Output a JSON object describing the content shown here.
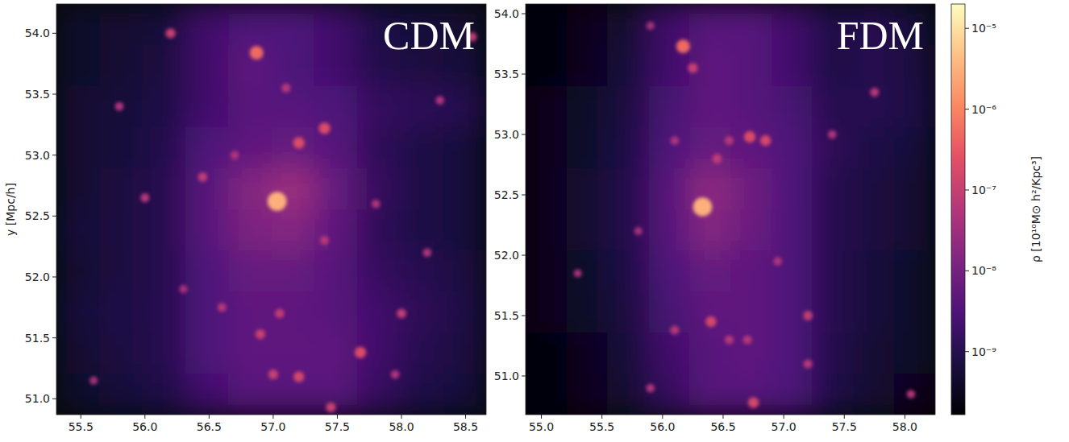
{
  "chart_data": [
    {
      "type": "heatmap",
      "title": "CDM",
      "ylabel": "y [Mpc/h]",
      "xlim": [
        55.31,
        58.66
      ],
      "xticks": [
        55.5,
        {
          "value": 56,
          "label": "56.0"
        },
        56.5,
        {
          "value": 57,
          "label": "57.0"
        },
        57.5,
        {
          "value": 58,
          "label": "58.0"
        },
        58.5
      ],
      "ylim": [
        50.87,
        54.24
      ],
      "yticks": [
        {
          "value": 51,
          "label": "51.0"
        },
        51.5,
        {
          "value": 52,
          "label": "52.0"
        },
        52.5,
        {
          "value": 53,
          "label": "53.0"
        },
        53.5,
        {
          "value": 54,
          "label": "54.0"
        }
      ],
      "cells": [
        [
          4e-10,
          5e-10,
          6e-10,
          2e-09,
          3e-09,
          3e-09,
          2e-09,
          8e-10,
          6e-10,
          5e-10
        ],
        [
          4e-10,
          5e-10,
          7e-10,
          2e-09,
          5e-09,
          3e-09,
          2e-09,
          9e-10,
          7e-10,
          6e-10
        ],
        [
          5e-10,
          6e-10,
          8e-10,
          2e-09,
          4e-09,
          4e-09,
          3e-09,
          1.5e-09,
          1.2e-09,
          1e-09
        ],
        [
          5e-10,
          6e-10,
          9e-10,
          3e-09,
          5e-09,
          6e-09,
          4e-09,
          1.2e-09,
          8e-10,
          6e-10
        ],
        [
          5e-10,
          7e-10,
          1e-09,
          4e-09,
          1.5e-08,
          3e-08,
          6e-09,
          1.5e-09,
          8e-10,
          6e-10
        ],
        [
          6e-10,
          7e-10,
          1e-09,
          4e-09,
          1.2e-08,
          1.5e-08,
          5e-09,
          1.2e-09,
          8e-10,
          6e-10
        ],
        [
          5e-10,
          7e-10,
          1e-09,
          3e-09,
          6e-09,
          6e-09,
          4e-09,
          1.5e-09,
          1e-09,
          7e-10
        ],
        [
          6e-10,
          8e-10,
          1e-09,
          3e-09,
          5e-09,
          5e-09,
          4e-09,
          2e-09,
          1.2e-09,
          8e-10
        ],
        [
          5e-10,
          7e-10,
          1e-09,
          3e-09,
          5e-09,
          5e-09,
          5e-09,
          2e-09,
          1e-09,
          7e-10
        ],
        [
          4e-10,
          6e-10,
          8e-10,
          2e-09,
          4e-09,
          4e-09,
          4e-09,
          1.5e-09,
          8e-10,
          6e-10
        ]
      ],
      "halos": [
        {
          "x": 57.03,
          "y": 52.62,
          "rho": 3e-06
        },
        {
          "x": 56.87,
          "y": 53.84,
          "rho": 5e-07
        },
        {
          "x": 57.2,
          "y": 53.1,
          "rho": 2e-07
        },
        {
          "x": 57.4,
          "y": 53.22,
          "rho": 2e-07
        },
        {
          "x": 56.2,
          "y": 54.0,
          "rho": 1e-07
        },
        {
          "x": 57.68,
          "y": 51.38,
          "rho": 2e-07
        },
        {
          "x": 57.0,
          "y": 51.2,
          "rho": 1e-07
        },
        {
          "x": 57.2,
          "y": 51.18,
          "rho": 1.5e-07
        },
        {
          "x": 57.45,
          "y": 50.93,
          "rho": 1e-07
        },
        {
          "x": 56.9,
          "y": 51.53,
          "rho": 1e-07
        },
        {
          "x": 57.05,
          "y": 51.7,
          "rho": 8e-08
        },
        {
          "x": 58.0,
          "y": 51.7,
          "rho": 8e-08
        },
        {
          "x": 56.45,
          "y": 52.82,
          "rho": 8e-08
        },
        {
          "x": 57.4,
          "y": 52.3,
          "rho": 6e-08
        },
        {
          "x": 58.2,
          "y": 52.2,
          "rho": 5e-08
        },
        {
          "x": 56.0,
          "y": 52.65,
          "rho": 6e-08
        },
        {
          "x": 58.55,
          "y": 53.97,
          "rho": 8e-08
        },
        {
          "x": 55.8,
          "y": 53.4,
          "rho": 5e-08
        },
        {
          "x": 56.6,
          "y": 51.75,
          "rho": 6e-08
        },
        {
          "x": 57.95,
          "y": 51.2,
          "rho": 5e-08
        },
        {
          "x": 57.8,
          "y": 52.6,
          "rho": 5e-08
        },
        {
          "x": 55.6,
          "y": 51.15,
          "rho": 4e-08
        },
        {
          "x": 56.3,
          "y": 51.9,
          "rho": 4e-08
        },
        {
          "x": 58.3,
          "y": 53.45,
          "rho": 5e-08
        },
        {
          "x": 57.1,
          "y": 53.55,
          "rho": 6e-08
        },
        {
          "x": 56.7,
          "y": 53.0,
          "rho": 5e-08
        }
      ]
    },
    {
      "type": "heatmap",
      "title": "FDM",
      "xlim": [
        54.87,
        58.25
      ],
      "xticks": [
        {
          "value": 55,
          "label": "55.0"
        },
        55.5,
        {
          "value": 56,
          "label": "56.0"
        },
        56.5,
        {
          "value": 57,
          "label": "57.0"
        },
        57.5,
        {
          "value": 58,
          "label": "58.0"
        }
      ],
      "ylim": [
        50.68,
        54.08
      ],
      "yticks": [
        {
          "value": 51,
          "label": "51.0"
        },
        51.5,
        {
          "value": 52,
          "label": "52.0"
        },
        52.5,
        {
          "value": 53,
          "label": "53.0"
        },
        53.5,
        {
          "value": 54,
          "label": "54.0"
        }
      ],
      "cells": [
        [
          2e-10,
          3e-10,
          5e-10,
          2e-09,
          4e-09,
          4e-09,
          2e-09,
          8e-10,
          1e-09,
          6e-10
        ],
        [
          2e-10,
          3e-10,
          6e-10,
          2e-09,
          5e-09,
          4e-09,
          2e-09,
          8e-10,
          1e-09,
          7e-10
        ],
        [
          3e-10,
          4e-10,
          7e-10,
          2.5e-09,
          5e-09,
          4e-09,
          2.5e-09,
          1e-09,
          1e-09,
          8e-10
        ],
        [
          3e-10,
          4e-10,
          8e-10,
          3e-09,
          6e-09,
          5e-09,
          3e-09,
          1.2e-09,
          8e-10,
          6e-10
        ],
        [
          3e-10,
          5e-10,
          9e-10,
          4e-09,
          2e-08,
          8e-09,
          3e-09,
          1e-09,
          7e-10,
          5e-10
        ],
        [
          3e-10,
          5e-10,
          9e-10,
          4e-09,
          1.5e-08,
          7e-09,
          3e-09,
          1e-09,
          7e-10,
          5e-10
        ],
        [
          3e-10,
          4e-10,
          8e-10,
          3e-09,
          6e-09,
          5e-09,
          3e-09,
          1e-09,
          6e-10,
          4e-10
        ],
        [
          3e-10,
          4e-10,
          7e-10,
          2.5e-09,
          5e-09,
          5e-09,
          3e-09,
          1e-09,
          6e-10,
          4e-10
        ],
        [
          2e-10,
          3e-10,
          6e-10,
          2e-09,
          4e-09,
          5e-09,
          3e-09,
          9e-10,
          5e-10,
          4e-10
        ],
        [
          2e-10,
          3e-10,
          5e-10,
          1.5e-09,
          4e-09,
          4e-09,
          3e-09,
          8e-10,
          5e-10,
          3e-10
        ]
      ],
      "halos": [
        {
          "x": 56.33,
          "y": 52.4,
          "rho": 3e-06
        },
        {
          "x": 56.17,
          "y": 53.73,
          "rho": 5e-07
        },
        {
          "x": 56.25,
          "y": 53.55,
          "rho": 1e-07
        },
        {
          "x": 56.72,
          "y": 52.98,
          "rho": 2e-07
        },
        {
          "x": 56.85,
          "y": 52.95,
          "rho": 1.5e-07
        },
        {
          "x": 56.45,
          "y": 52.8,
          "rho": 8e-08
        },
        {
          "x": 56.4,
          "y": 51.45,
          "rho": 1.5e-07
        },
        {
          "x": 56.75,
          "y": 50.78,
          "rho": 1.5e-07
        },
        {
          "x": 56.55,
          "y": 51.3,
          "rho": 6e-08
        },
        {
          "x": 57.2,
          "y": 51.5,
          "rho": 8e-08
        },
        {
          "x": 57.2,
          "y": 51.1,
          "rho": 6e-08
        },
        {
          "x": 56.7,
          "y": 51.3,
          "rho": 6e-08
        },
        {
          "x": 56.1,
          "y": 51.38,
          "rho": 6e-08
        },
        {
          "x": 55.9,
          "y": 50.9,
          "rho": 5e-08
        },
        {
          "x": 57.75,
          "y": 53.35,
          "rho": 6e-08
        },
        {
          "x": 57.4,
          "y": 53.0,
          "rho": 5e-08
        },
        {
          "x": 56.55,
          "y": 52.95,
          "rho": 6e-08
        },
        {
          "x": 56.1,
          "y": 52.95,
          "rho": 5e-08
        },
        {
          "x": 58.05,
          "y": 50.85,
          "rho": 5e-08
        },
        {
          "x": 56.95,
          "y": 51.95,
          "rho": 5e-08
        },
        {
          "x": 55.3,
          "y": 51.85,
          "rho": 4e-08
        },
        {
          "x": 55.8,
          "y": 52.2,
          "rho": 4e-08
        },
        {
          "x": 55.9,
          "y": 53.9,
          "rho": 4e-08
        }
      ],
      "colorbar": {
        "label": "ρ [10¹⁰M⊙ h²/Kpc³]",
        "log": true,
        "range": [
          1.66e-10,
          2e-05
        ],
        "ticks": [
          {
            "value": 1e-09,
            "label": "10⁻⁹"
          },
          {
            "value": 1e-08,
            "label": "10⁻⁸"
          },
          {
            "value": 1e-07,
            "label": "10⁻⁷"
          },
          {
            "value": 1e-06,
            "label": "10⁻⁶"
          },
          {
            "value": 1e-05,
            "label": "10⁻⁵"
          }
        ]
      }
    }
  ]
}
